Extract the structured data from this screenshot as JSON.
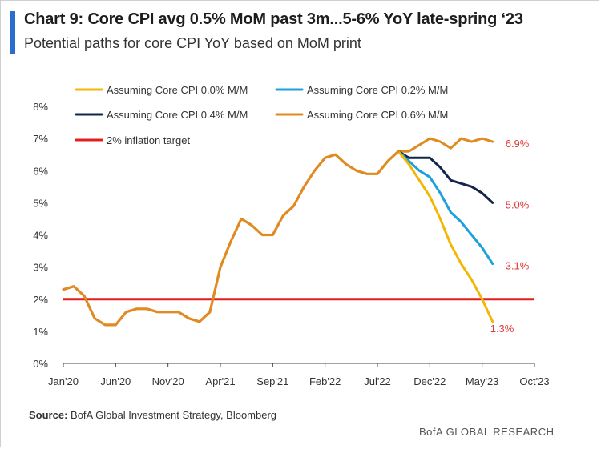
{
  "header": {
    "title": "Chart 9: Core CPI avg 0.5% MoM past 3m...5-6% YoY late-spring ‘23",
    "subtitle": "Potential paths for core CPI YoY based on MoM print"
  },
  "footer": {
    "source_label": "Source:",
    "source_text": "BofA Global Investment Strategy, Bloomberg",
    "brand": "BofA GLOBAL RESEARCH"
  },
  "colors": {
    "scenario_0": "#f2b705",
    "scenario_02": "#1ea0dc",
    "scenario_04": "#14254b",
    "scenario_06": "#e08a22",
    "target": "#e01f1f",
    "label": "#e03a3a",
    "axis_text": "#333333"
  },
  "chart_data": {
    "type": "line",
    "x_unit": "months since Jan 2020",
    "xlim": [
      0,
      45
    ],
    "ylim": [
      0,
      8
    ],
    "x_ticks": [
      0,
      5,
      10,
      15,
      20,
      25,
      30,
      35,
      40,
      45
    ],
    "x_tick_labels": [
      "Jan'20",
      "Jun'20",
      "Nov'20",
      "Apr'21",
      "Sep'21",
      "Feb'22",
      "Jul'22",
      "Dec'22",
      "May'23",
      "Oct'23"
    ],
    "y_ticks": [
      0,
      1,
      2,
      3,
      4,
      5,
      6,
      7,
      8
    ],
    "y_tick_labels": [
      "0%",
      "1%",
      "2%",
      "3%",
      "4%",
      "5%",
      "6%",
      "7%",
      "8%"
    ],
    "legend": [
      {
        "label": "Assuming Core CPI 0.0% M/M",
        "series": "s0"
      },
      {
        "label": "Assuming Core CPI 0.2% M/M",
        "series": "s2"
      },
      {
        "label": "Assuming Core CPI 0.4% M/M",
        "series": "s4"
      },
      {
        "label": "Assuming Core CPI 0.6% M/M",
        "series": "s6"
      },
      {
        "label": "2% inflation target",
        "series": "target"
      }
    ],
    "target": 2.0,
    "historical": {
      "x": [
        0,
        1,
        2,
        3,
        4,
        5,
        6,
        7,
        8,
        9,
        10,
        11,
        12,
        13,
        14,
        15,
        16,
        17,
        18,
        19,
        20,
        21,
        22,
        23,
        24,
        25,
        26,
        27,
        28,
        29,
        30,
        31,
        32
      ],
      "y": [
        2.3,
        2.4,
        2.1,
        1.4,
        1.2,
        1.2,
        1.6,
        1.7,
        1.7,
        1.6,
        1.6,
        1.6,
        1.4,
        1.3,
        1.6,
        3.0,
        3.8,
        4.5,
        4.3,
        4.0,
        4.0,
        4.6,
        4.9,
        5.5,
        6.0,
        6.4,
        6.5,
        6.2,
        6.0,
        5.9,
        5.9,
        6.3,
        6.6
      ]
    },
    "series": [
      {
        "id": "s0",
        "name": "Assuming Core CPI 0.0% M/M",
        "x": [
          32,
          33,
          34,
          35,
          36,
          37,
          38,
          39,
          40,
          41
        ],
        "y": [
          6.6,
          6.2,
          5.7,
          5.2,
          4.5,
          3.7,
          3.1,
          2.6,
          2.0,
          1.3
        ],
        "end_label": "1.3%"
      },
      {
        "id": "s2",
        "name": "Assuming Core CPI 0.2% M/M",
        "x": [
          32,
          33,
          34,
          35,
          36,
          37,
          38,
          39,
          40,
          41
        ],
        "y": [
          6.6,
          6.3,
          6.0,
          5.8,
          5.3,
          4.7,
          4.4,
          4.0,
          3.6,
          3.1
        ],
        "end_label": "3.1%"
      },
      {
        "id": "s4",
        "name": "Assuming Core CPI 0.4% M/M",
        "x": [
          32,
          33,
          34,
          35,
          36,
          37,
          38,
          39,
          40,
          41
        ],
        "y": [
          6.6,
          6.4,
          6.4,
          6.4,
          6.1,
          5.7,
          5.6,
          5.5,
          5.3,
          5.0
        ],
        "end_label": "5.0%"
      },
      {
        "id": "s6",
        "name": "Assuming Core CPI 0.6% M/M",
        "x": [
          32,
          33,
          34,
          35,
          36,
          37,
          38,
          39,
          40,
          41
        ],
        "y": [
          6.6,
          6.6,
          6.8,
          7.0,
          6.9,
          6.7,
          7.0,
          6.9,
          7.0,
          6.9
        ],
        "end_label": "6.9%"
      }
    ]
  }
}
